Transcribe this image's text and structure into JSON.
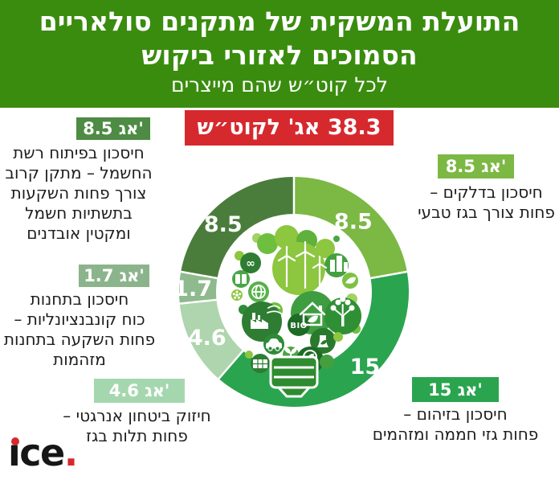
{
  "colors": {
    "header_bg": "#3a8c0e",
    "accent_red": "#d6292e",
    "text_dark": "#1d1d1b",
    "white": "#ffffff"
  },
  "header": {
    "title_line1": "התועלת המשקית של מתקנים סולאריים",
    "title_line2": "הסמוכים לאזורי ביקוש",
    "subtitle": "לכל קוט״ש שהם מייצרים"
  },
  "total_badge": {
    "label": "38.3 אג' לקוט״ש"
  },
  "chart_data": {
    "type": "pie",
    "donut": true,
    "title": "התועלת המשקית של מתקנים סולאריים הסמוכים לאזורי ביקוש לכל קוט״ש שהם מייצרים",
    "units": "אגורות לקוט״ש",
    "total": 38.3,
    "total_label": "38.3 אג' לקוט״ש",
    "start_angle_deg": 0,
    "direction": "clockwise",
    "legend": "none",
    "segments": [
      {
        "name": "fuel",
        "value": 8.5,
        "label": "8.5",
        "color": "#7cb844"
      },
      {
        "name": "pollution",
        "value": 15,
        "label": "15",
        "color": "#2aa44f"
      },
      {
        "name": "security",
        "value": 4.6,
        "label": "4.6",
        "color": "#aed5ae"
      },
      {
        "name": "plants",
        "value": 1.7,
        "label": "1.7",
        "color": "#8eba8e"
      },
      {
        "name": "grid",
        "value": 8.5,
        "label": "8.5",
        "color": "#4a7d3b"
      }
    ]
  },
  "callouts": {
    "grid": {
      "badge": "8.5 אג'",
      "color": "#4e8b44",
      "lines": [
        "חיסכון בפיתוח רשת",
        "החשמל – מתקן קרוב",
        "צורך פחות השקעות",
        "בתשתיות חשמל",
        "ומקטין אובדנים"
      ]
    },
    "fuel": {
      "badge": "8.5 אג'",
      "color": "#7cb844",
      "lines": [
        "חיסכון בדלקים –",
        "פחות צורך בגז טבעי"
      ]
    },
    "plants": {
      "badge": "1.7 אג'",
      "color": "#8cb48c",
      "lines": [
        "חיסכון בתחנות",
        "כוח קונבנציונליות –",
        "פחות השקעה בתחנות",
        "מזהמות"
      ]
    },
    "security": {
      "badge": "4.6 אג'",
      "color": "#a5d7af",
      "lines": [
        "חיזוק ביטחון אנרגטי –",
        "פחות תלות בגז"
      ]
    },
    "pollution": {
      "badge": "15 אג'",
      "color": "#2aa44f",
      "lines": [
        "חיסכון בזיהום –",
        "פחות גזי חממה ומזהמים"
      ]
    }
  },
  "logo": {
    "label": "ice.",
    "display": {
      "i": "ı",
      "rest": "ce",
      "dot": "."
    }
  }
}
